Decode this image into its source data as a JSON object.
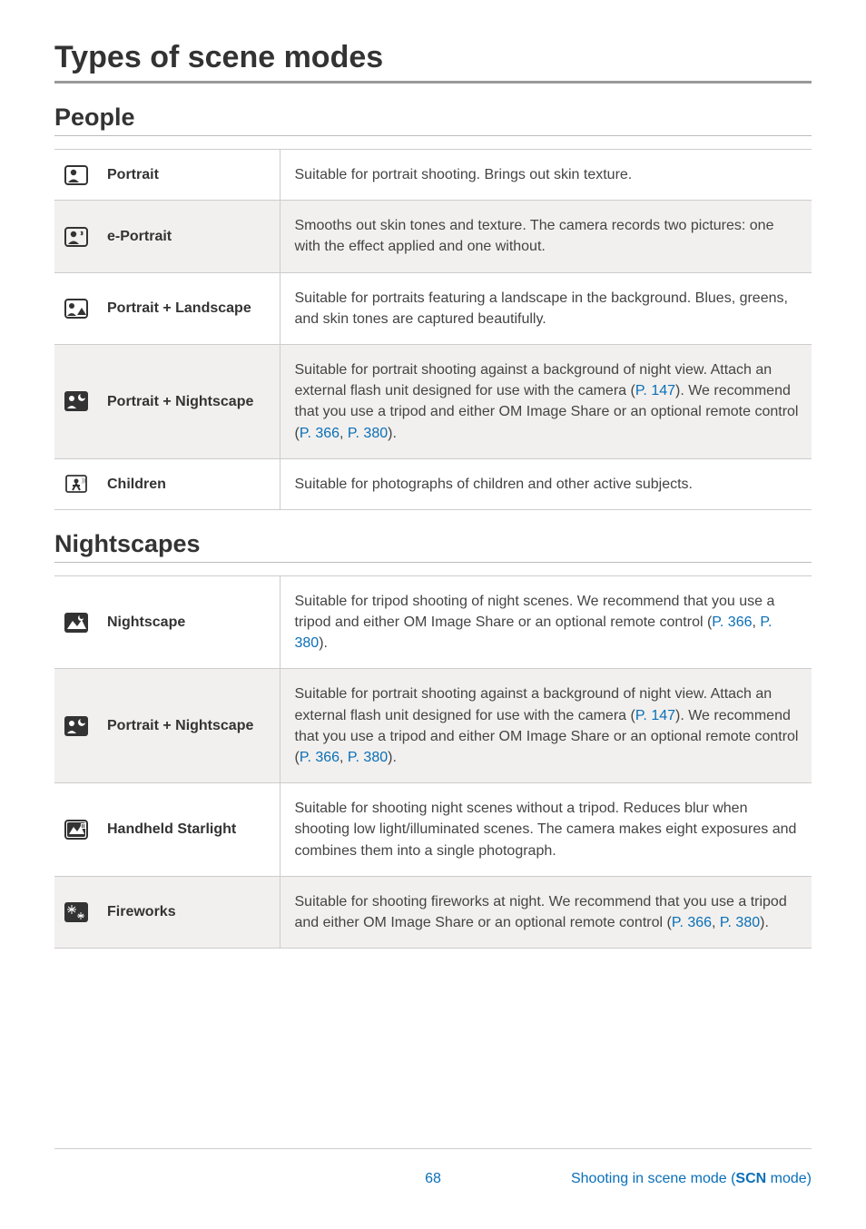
{
  "title": "Types of scene modes",
  "sections": [
    {
      "heading": "People",
      "rows": [
        {
          "icon": "portrait",
          "name": "Portrait",
          "desc": [
            {
              "t": "Suitable for portrait shooting. Brings out skin texture."
            }
          ]
        },
        {
          "icon": "eportrait",
          "name": "e-Portrait",
          "desc": [
            {
              "t": "Smooths out skin tones and texture. The camera records two pictures: one with the effect applied and one without."
            }
          ]
        },
        {
          "icon": "portrait-landscape",
          "name": "Portrait + Landscape",
          "desc": [
            {
              "t": "Suitable for portraits featuring a landscape in the background. Blues, greens, and skin tones are captured beautifully."
            }
          ]
        },
        {
          "icon": "portrait-night",
          "name": "Portrait + Nightscape",
          "desc": [
            {
              "t": "Suitable for portrait shooting against a background of night view. Attach an external flash unit designed for use with the camera ("
            },
            {
              "t": "P. 147",
              "link": true
            },
            {
              "t": "). We recommend that you use a tripod and either OM Image Share or an optional remote control ("
            },
            {
              "t": "P. 366",
              "link": true
            },
            {
              "t": ", "
            },
            {
              "t": "P. 380",
              "link": true
            },
            {
              "t": ")."
            }
          ]
        },
        {
          "icon": "children",
          "name": "Children",
          "desc": [
            {
              "t": "Suitable for photographs of children and other active subjects."
            }
          ]
        }
      ]
    },
    {
      "heading": "Nightscapes",
      "rows": [
        {
          "icon": "nightscape",
          "name": "Nightscape",
          "desc": [
            {
              "t": "Suitable for tripod shooting of night scenes. We recommend that you use a tripod and either OM Image Share or an optional remote control ("
            },
            {
              "t": "P. 366",
              "link": true
            },
            {
              "t": ", "
            },
            {
              "t": "P. 380",
              "link": true
            },
            {
              "t": ")."
            }
          ]
        },
        {
          "icon": "portrait-night",
          "name": "Portrait + Nightscape",
          "desc": [
            {
              "t": "Suitable for portrait shooting against a background of night view. Attach an external flash unit designed for use with the camera ("
            },
            {
              "t": "P. 147",
              "link": true
            },
            {
              "t": "). We recommend that you use a tripod and either OM Image Share or an optional remote control ("
            },
            {
              "t": "P. 366",
              "link": true
            },
            {
              "t": ", "
            },
            {
              "t": "P. 380",
              "link": true
            },
            {
              "t": ")."
            }
          ]
        },
        {
          "icon": "handheld-starlight",
          "name": "Handheld Starlight",
          "desc": [
            {
              "t": "Suitable for shooting night scenes without a tripod. Reduces blur when shooting low light/illuminated scenes. The camera makes eight exposures and combines them into a single photograph."
            }
          ]
        },
        {
          "icon": "fireworks",
          "name": "Fireworks",
          "desc": [
            {
              "t": "Suitable for shooting fireworks at night. We recommend that you use a tripod and either OM Image Share or an optional remote control ("
            },
            {
              "t": "P. 366",
              "link": true
            },
            {
              "t": ", "
            },
            {
              "t": "P. 380",
              "link": true
            },
            {
              "t": ")."
            }
          ]
        }
      ]
    }
  ],
  "footer": {
    "page": "68",
    "crumb_prefix": "Shooting in scene mode (",
    "crumb_scn": "SCN",
    "crumb_suffix": " mode)"
  },
  "colors": {
    "link": "#0a6fb8",
    "text": "#444444",
    "heading": "#333333",
    "alt_row": "#f1f0ee",
    "border": "#cccccc"
  }
}
